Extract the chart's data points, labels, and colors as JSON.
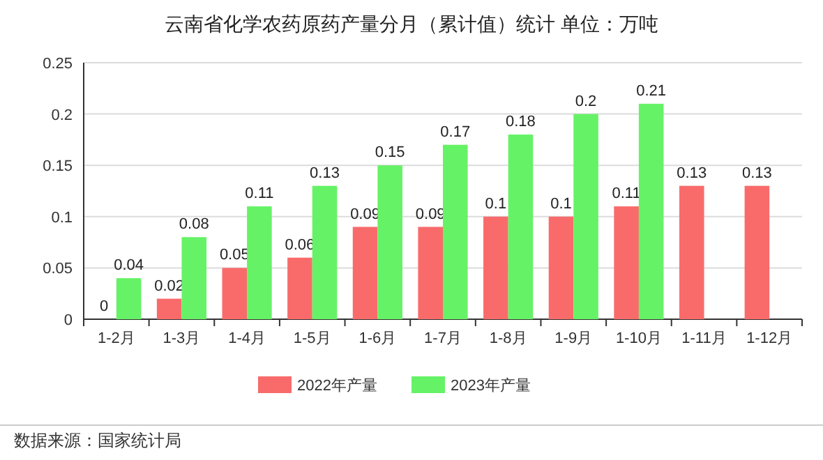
{
  "chart_data": {
    "type": "bar",
    "title": "云南省化学农药原药产量分月（累计值）统计  单位：万吨",
    "categories": [
      "1-2月",
      "1-3月",
      "1-4月",
      "1-5月",
      "1-6月",
      "1-7月",
      "1-8月",
      "1-9月",
      "1-10月",
      "1-11月",
      "1-12月"
    ],
    "series": [
      {
        "name": "2022年产量",
        "color": "#f96b6b",
        "values": [
          0,
          0.02,
          0.05,
          0.06,
          0.09,
          0.09,
          0.1,
          0.1,
          0.11,
          0.13,
          0.13
        ]
      },
      {
        "name": "2023年产量",
        "color": "#66f266",
        "values": [
          0.04,
          0.08,
          0.11,
          0.13,
          0.15,
          0.17,
          0.18,
          0.2,
          0.21,
          null,
          null
        ]
      }
    ],
    "ylim": [
      0,
      0.25
    ],
    "yticks": [
      0,
      0.05,
      0.1,
      0.15,
      0.2,
      0.25
    ],
    "grid": "y",
    "legend": "bottom",
    "data_labels": true,
    "annotations": [
      "数据来源：国家统计局"
    ]
  }
}
